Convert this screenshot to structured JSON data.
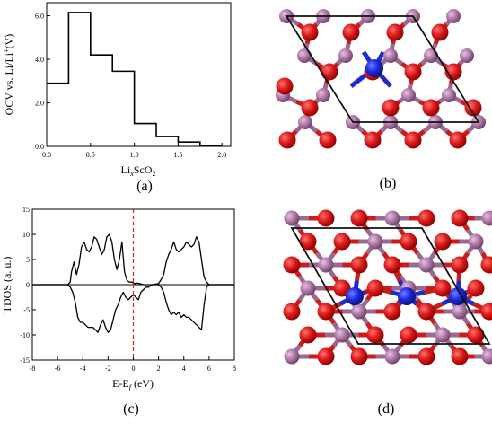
{
  "figure": {
    "captions": {
      "a": "(a)",
      "b": "(b)",
      "c": "(c)",
      "d": "(d)"
    }
  },
  "chart_data": [
    {
      "type": "line",
      "panel": "a",
      "xlabel": "Li_xScO_2",
      "xlabel_parts": {
        "main": "Li",
        "sub": "x",
        "mid": "ScO",
        "sub2": "2"
      },
      "ylabel": "OCV vs. Li/Li+(V)",
      "ylabel_parts": {
        "pre": "OCV vs. Li/Li",
        "sup": "+",
        "post": "(V)"
      },
      "xlim": [
        0,
        2.1
      ],
      "ylim": [
        0,
        6.6
      ],
      "xticks": [
        "0.0",
        "0.5",
        "1.0",
        "1.5",
        "2.0"
      ],
      "yticks": [
        "0.0",
        "2.0",
        "4.0",
        "6.0"
      ],
      "step_x": [
        0,
        0.25,
        0.5,
        0.75,
        1.0,
        1.25,
        1.5,
        1.75,
        2.0
      ],
      "step_y": [
        2.9,
        6.15,
        4.2,
        3.45,
        1.05,
        0.45,
        0.2,
        0.05
      ],
      "grid": false
    },
    {
      "type": "line",
      "panel": "c",
      "xlabel": "E-E_f (eV)",
      "xlabel_parts": {
        "pre": "E-E",
        "sub": "f",
        "post": " (eV)"
      },
      "ylabel": "TDOS (a. u.)",
      "xlim": [
        -8,
        8
      ],
      "ylim": [
        -15,
        15
      ],
      "xticks": [
        "-8",
        "-6",
        "-4",
        "-2",
        "0",
        "2",
        "4",
        "6",
        "8"
      ],
      "yticks": [
        "-15",
        "-10",
        "-5",
        "0",
        "5",
        "10",
        "15"
      ],
      "fermi_level": 0,
      "fermi_color": "#dd2222",
      "grid": false,
      "series": [
        {
          "x": [
            -8,
            -5.2,
            -5.0,
            -4.9,
            -4.7,
            -4.5,
            -4.3,
            -4.1,
            -3.9,
            -3.7,
            -3.5,
            -3.3,
            -3.1,
            -2.9,
            -2.7,
            -2.5,
            -2.3,
            -2.1,
            -1.9,
            -1.7,
            -1.5,
            -1.3,
            -1.1,
            -0.9,
            -0.7,
            -0.5,
            -0.3,
            -0.1,
            0.1,
            0.3,
            0.5,
            0.8,
            1.0,
            1.5,
            2.0,
            2.2,
            2.4,
            2.6,
            2.8,
            3.0,
            3.2,
            3.4,
            3.6,
            3.8,
            4.0,
            4.2,
            4.4,
            4.6,
            4.8,
            5.0,
            5.2,
            5.4,
            5.6,
            5.8,
            6.0,
            8
          ],
          "y": [
            0,
            0,
            0.5,
            2.5,
            4.5,
            2.0,
            4.0,
            7.5,
            8.5,
            7.0,
            6.5,
            7.5,
            9.5,
            9.0,
            7.5,
            6.0,
            7.0,
            9.5,
            10.0,
            8.5,
            5.0,
            3.0,
            5.0,
            8.5,
            2.5,
            0.8,
            0.5,
            0.5,
            0.2,
            0.3,
            0.2,
            0,
            0,
            0,
            0.2,
            1.0,
            2.0,
            4.5,
            6.0,
            7.0,
            8.5,
            7.0,
            6.5,
            7.0,
            7.5,
            8.5,
            8.0,
            7.5,
            8.0,
            9.5,
            8.5,
            5.0,
            1.5,
            0.5,
            0,
            0
          ]
        },
        {
          "x": [
            -8,
            -5.2,
            -5.0,
            -4.8,
            -4.6,
            -4.4,
            -4.2,
            -4.0,
            -3.8,
            -3.6,
            -3.4,
            -3.2,
            -3.0,
            -2.8,
            -2.6,
            -2.4,
            -2.2,
            -2.0,
            -1.8,
            -1.6,
            -1.4,
            -1.2,
            -1.0,
            -0.8,
            -0.6,
            -0.4,
            -0.2,
            0.0,
            0.2,
            0.4,
            0.6,
            0.8,
            1.0,
            1.2,
            1.5,
            2.0,
            2.2,
            2.4,
            2.6,
            2.8,
            3.0,
            3.2,
            3.4,
            3.6,
            3.8,
            4.0,
            4.2,
            4.4,
            4.6,
            4.8,
            5.0,
            5.2,
            5.4,
            5.6,
            5.8,
            6.0,
            8
          ],
          "y": [
            0,
            0,
            -0.5,
            -1.5,
            -3.5,
            -6.5,
            -7.5,
            -7.5,
            -8.0,
            -8.5,
            -8.5,
            -8.5,
            -9.0,
            -9.5,
            -8.0,
            -7.0,
            -8.5,
            -9.5,
            -9.0,
            -7.0,
            -5.0,
            -4.0,
            -2.5,
            -1.5,
            -2.5,
            -3.0,
            -2.5,
            -2.0,
            -2.5,
            -3.0,
            -1.5,
            -1.0,
            -0.5,
            -0.5,
            0,
            0,
            -0.5,
            -1.5,
            -3.5,
            -5.0,
            -6.0,
            -5.5,
            -6.0,
            -5.5,
            -6.5,
            -6.0,
            -6.5,
            -6.5,
            -7.0,
            -7.5,
            -8.0,
            -8.5,
            -9.0,
            -4.0,
            -0.5,
            0,
            0
          ]
        }
      ]
    }
  ]
}
